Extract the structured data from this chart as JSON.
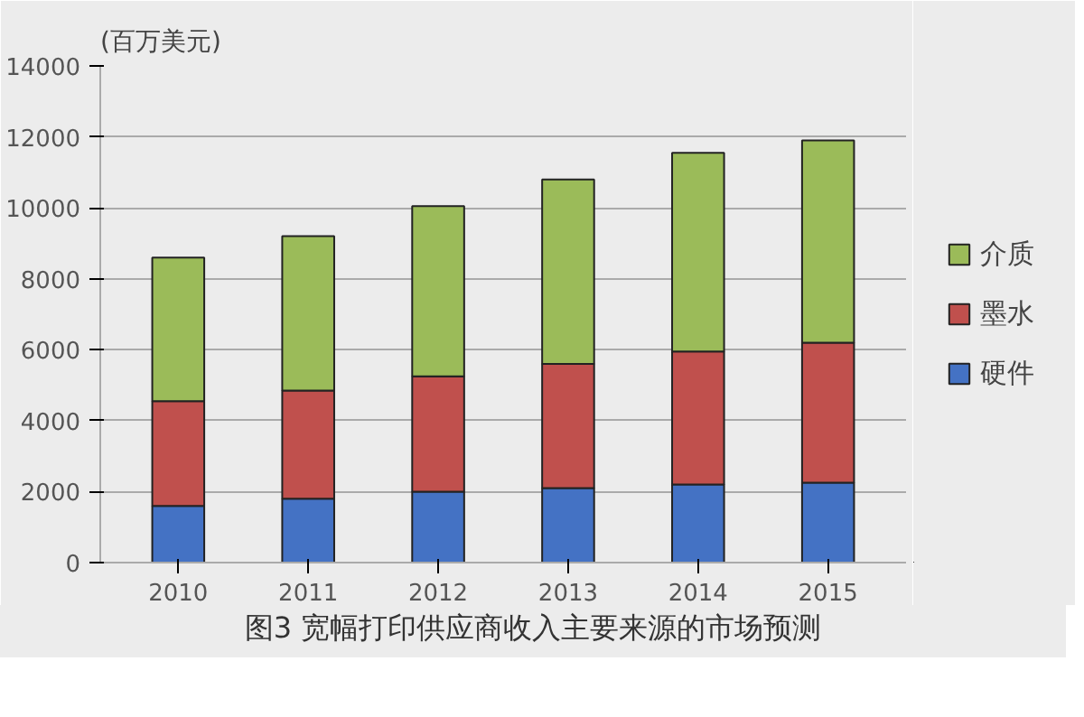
{
  "chart_data": {
    "type": "bar",
    "stacked": true,
    "title": "图3 宽幅打印供应商收入主要来源的市场预测",
    "ylabel": "(百万美元)",
    "categories": [
      "2010",
      "2011",
      "2012",
      "2013",
      "2014",
      "2015"
    ],
    "series": [
      {
        "name": "硬件",
        "color": "#4472c4",
        "values": [
          1600,
          1800,
          2000,
          2100,
          2200,
          2250
        ]
      },
      {
        "name": "墨水",
        "color": "#c0504d",
        "values": [
          2950,
          3050,
          3250,
          3500,
          3750,
          3950
        ]
      },
      {
        "name": "介质",
        "color": "#9bbb59",
        "values": [
          4050,
          4350,
          4800,
          5200,
          5600,
          5700
        ]
      }
    ],
    "ylim": [
      0,
      14000
    ],
    "yticks": [
      0,
      2000,
      4000,
      6000,
      8000,
      10000,
      12000,
      14000
    ],
    "grid": "y",
    "legend": "right"
  }
}
